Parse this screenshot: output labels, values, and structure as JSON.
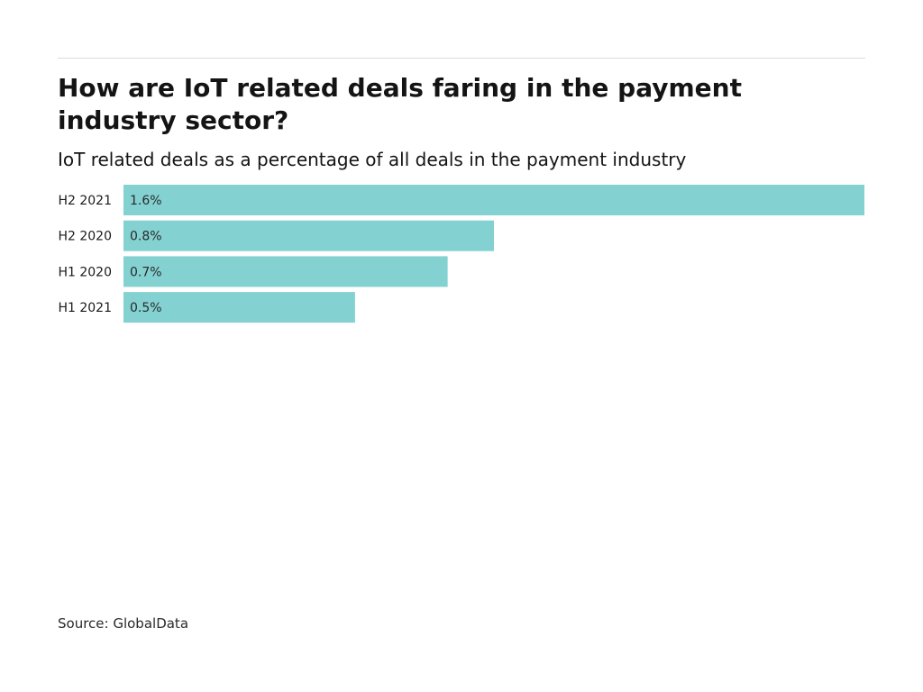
{
  "colors": {
    "bar": "#84d1d1",
    "text": "#1a1a1a",
    "rule": "#dcdcdc"
  },
  "header": {
    "title": "How are IoT related deals faring in the payment industry sector?",
    "subtitle": "IoT related deals as a percentage of all deals in the payment industry"
  },
  "footer": {
    "source": "Source: GlobalData"
  },
  "chart_data": {
    "type": "bar",
    "orientation": "horizontal",
    "title": "How are IoT related deals faring in the payment industry sector?",
    "subtitle": "IoT related deals as a percentage of all deals in the payment industry",
    "categories": [
      "H2 2021",
      "H2 2020",
      "H1 2020",
      "H1 2021"
    ],
    "values": [
      1.6,
      0.8,
      0.7,
      0.5
    ],
    "value_labels": [
      "1.6%",
      "0.8%",
      "0.7%",
      "0.5%"
    ],
    "unit": "%",
    "xlim": [
      0,
      1.6
    ],
    "grid": false,
    "legend": "none"
  }
}
